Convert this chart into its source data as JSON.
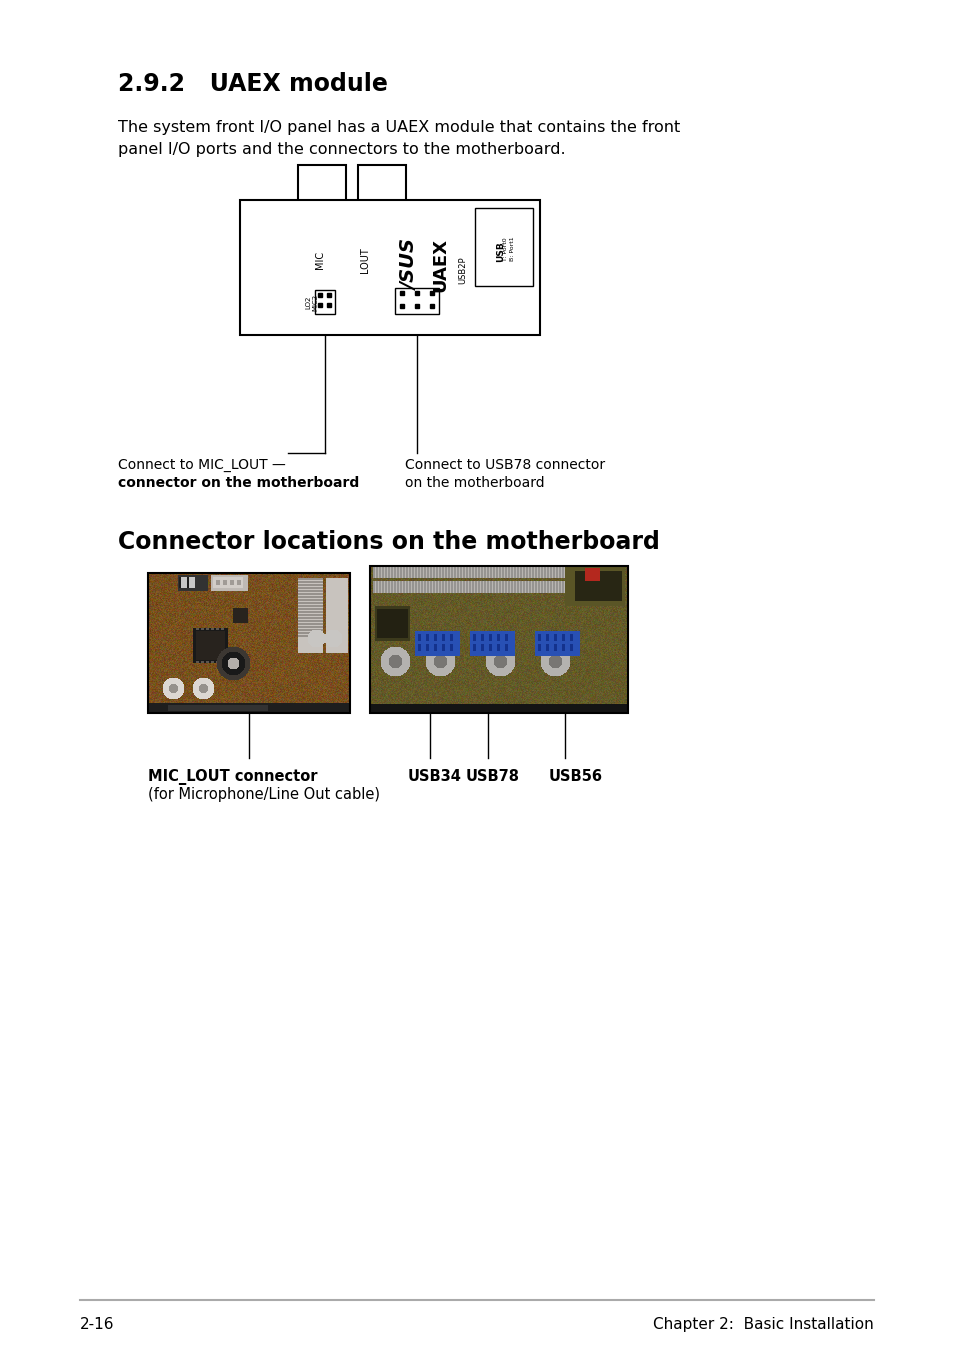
{
  "title": "2.9.2   UAEX module",
  "body_text_line1": "The system front I/O panel has a UAEX module that contains the front",
  "body_text_line2": "panel I/O ports and the connectors to the motherboard.",
  "section_title": "Connector locations on the motherboard",
  "connect_mic_lout_1": "Connect to MIC_LOUT —",
  "connect_mic_lout_2": "connector on the motherboard",
  "connect_usb78_1": "Connect to USB78 connector",
  "connect_usb78_2": "on the motherboard",
  "label_mic_lout_1": "MIC_LOUT connector",
  "label_mic_lout_2": "(for Microphone/Line Out cable)",
  "label_usb34": "USB34",
  "label_usb78": "USB78",
  "label_usb56": "USB56",
  "footer_left": "2-16",
  "footer_right": "Chapter 2:  Basic Installation",
  "bg_color": "#ffffff",
  "text_color": "#000000"
}
